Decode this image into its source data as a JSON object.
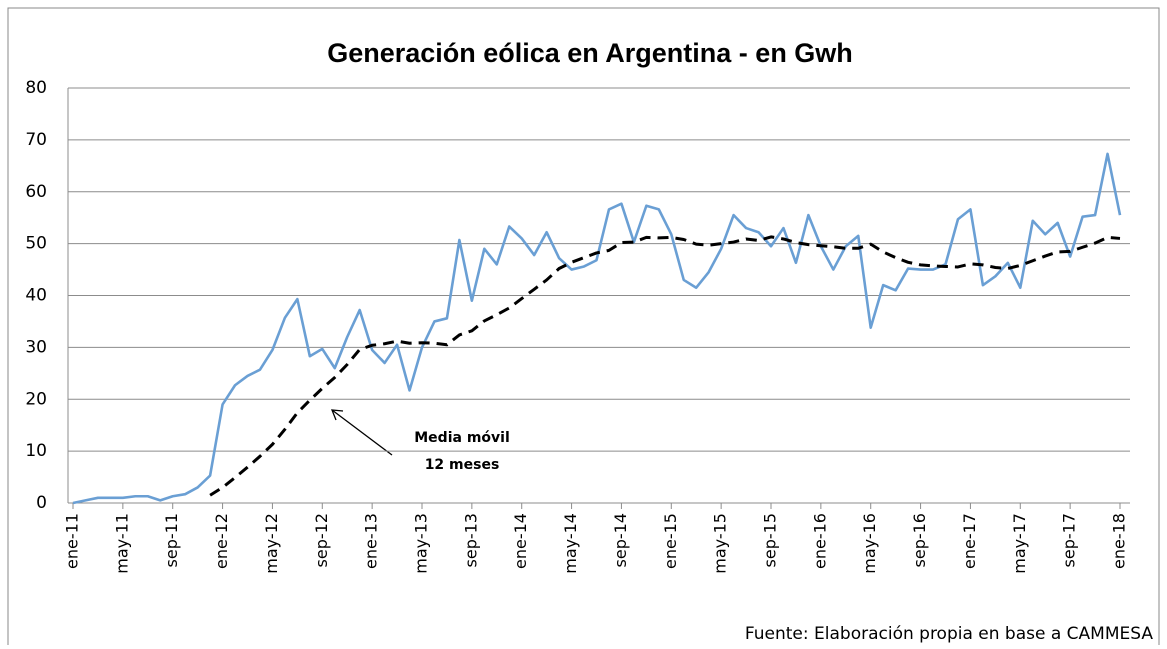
{
  "chart_data": {
    "type": "line",
    "title": "Generación eólica en Argentina - en Gwh",
    "source": "Fuente: Elaboración propia en base a CAMMESA",
    "annotation": [
      "Media móvil",
      "12 meses"
    ],
    "categories": [
      "ene-11",
      null,
      null,
      null,
      "may-11",
      null,
      null,
      null,
      "sep-11",
      null,
      null,
      null,
      "ene-12",
      null,
      null,
      null,
      "may-12",
      null,
      null,
      null,
      "sep-12",
      null,
      null,
      null,
      "ene-13",
      null,
      null,
      null,
      "may-13",
      null,
      null,
      null,
      "sep-13",
      null,
      null,
      null,
      "ene-14",
      null,
      null,
      null,
      "may-14",
      null,
      null,
      null,
      "sep-14",
      null,
      null,
      null,
      "ene-15",
      null,
      null,
      null,
      "may-15",
      null,
      null,
      null,
      "sep-15",
      null,
      null,
      null,
      "ene-16",
      null,
      null,
      null,
      "may-16",
      null,
      null,
      null,
      "sep-16",
      null,
      null,
      null,
      "ene-17",
      null,
      null,
      null,
      "may-17",
      null,
      null,
      null,
      "sep-17",
      null,
      null,
      null,
      "ene-18"
    ],
    "series": [
      {
        "color": "#6a9fd4",
        "dash": false,
        "values": [
          0,
          0.5,
          1,
          1,
          1,
          1.3,
          1.3,
          0.5,
          1.3,
          1.7,
          3,
          5.3,
          19,
          22.7,
          24.5,
          25.7,
          29.5,
          35.7,
          39.3,
          28.3,
          29.7,
          26,
          32,
          37.2,
          29.5,
          27,
          30.5,
          21.7,
          30,
          35,
          35.6,
          50.7,
          39,
          49,
          46,
          53.3,
          51,
          47.8,
          52.2,
          47.2,
          45,
          45.6,
          46.8,
          56.6,
          57.7,
          50.3,
          57.3,
          56.6,
          51.8,
          43,
          41.5,
          44.5,
          49,
          55.5,
          53,
          52.2,
          49.5,
          53,
          46.3,
          55.5,
          49.5,
          45,
          49.5,
          51.5,
          33.8,
          42,
          41,
          45.2,
          45,
          45,
          46,
          54.7,
          56.6,
          42,
          43.7,
          46.3,
          41.5,
          54.4,
          51.8,
          54,
          47.5,
          55.2,
          55.5,
          67.3,
          55.5
        ]
      },
      {
        "color": "#000000",
        "dash": true,
        "values": [
          null,
          null,
          null,
          null,
          null,
          null,
          null,
          null,
          null,
          null,
          null,
          1.5,
          3.0,
          4.9,
          6.9,
          9.0,
          11.3,
          14.2,
          17.4,
          19.8,
          22.1,
          24.2,
          26.7,
          29.6,
          30.4,
          30.7,
          31.2,
          30.8,
          30.9,
          30.8,
          30.5,
          32.4,
          33.2,
          35.1,
          36.3,
          37.6,
          39.4,
          41.2,
          43.0,
          45.2,
          46.4,
          47.3,
          48.2,
          48.7,
          50.2,
          50.3,
          51.2,
          51.1,
          51.2,
          50.8,
          49.9,
          49.7,
          50.0,
          50.3,
          50.9,
          50.6,
          51.3,
          50.9,
          50.2,
          49.8,
          49.6,
          49.4,
          49.1,
          49.1,
          49.9,
          48.4,
          47.3,
          46.4,
          45.9,
          45.7,
          45.6,
          45.5,
          46.1,
          45.9,
          45.4,
          45.2,
          45.8,
          46.7,
          47.6,
          48.4,
          48.5,
          49.3,
          50.1,
          51.2,
          51.0
        ]
      }
    ],
    "ylim": [
      0,
      80
    ],
    "yticks": [
      0,
      10,
      20,
      30,
      40,
      50,
      60,
      70,
      80
    ],
    "grid": true
  }
}
